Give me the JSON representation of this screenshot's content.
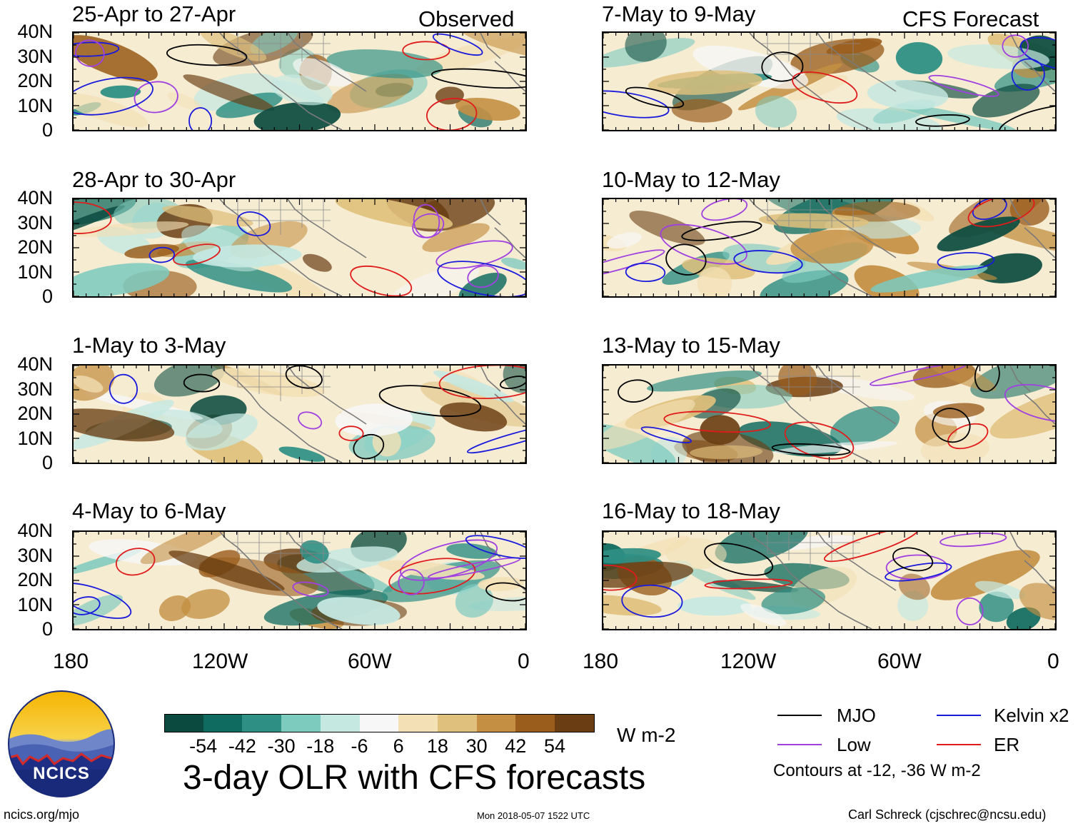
{
  "headers": {
    "observed": "Observed",
    "forecast": "CFS Forecast"
  },
  "panels_left": [
    {
      "title": "25-Apr to 27-Apr"
    },
    {
      "title": "28-Apr to 30-Apr"
    },
    {
      "title": "1-May to 3-May"
    },
    {
      "title": "4-May to 6-May"
    }
  ],
  "panels_right": [
    {
      "title": "7-May to 9-May"
    },
    {
      "title": "10-May to 12-May"
    },
    {
      "title": "13-May to 15-May"
    },
    {
      "title": "16-May to 18-May"
    }
  ],
  "y_axis": [
    "40N",
    "30N",
    "20N",
    "10N",
    "0"
  ],
  "x_axis": [
    "180",
    "120W",
    "60W",
    "0"
  ],
  "colorbar": {
    "colors": [
      "#0b4b3f",
      "#0f6b5f",
      "#2e8f84",
      "#7dcabf",
      "#c5e8e1",
      "#f7f7f7",
      "#f3e0b5",
      "#dfc07c",
      "#c48f42",
      "#9a5d1c",
      "#6a3d12"
    ],
    "labels": [
      "-54",
      "-42",
      "-30",
      "-18",
      "-6",
      "6",
      "18",
      "30",
      "42",
      "54"
    ],
    "units": "W m-2"
  },
  "main_title": "3-day OLR with CFS forecasts",
  "legend": {
    "items": [
      {
        "label": "MJO",
        "color": "#000000"
      },
      {
        "label": "Kelvin x2",
        "color": "#1a1adc"
      },
      {
        "label": "Low",
        "color": "#a040e0"
      },
      {
        "label": "ER",
        "color": "#e01b1b"
      }
    ],
    "note": "Contours at -12, -36 W m-2"
  },
  "logo": {
    "text": "NCICS"
  },
  "footer": {
    "left": "ncics.org/mjo",
    "center": "Mon 2018-05-07 1522 UTC",
    "right": "Carl Schreck (cjschrec@ncsu.edu)"
  }
}
